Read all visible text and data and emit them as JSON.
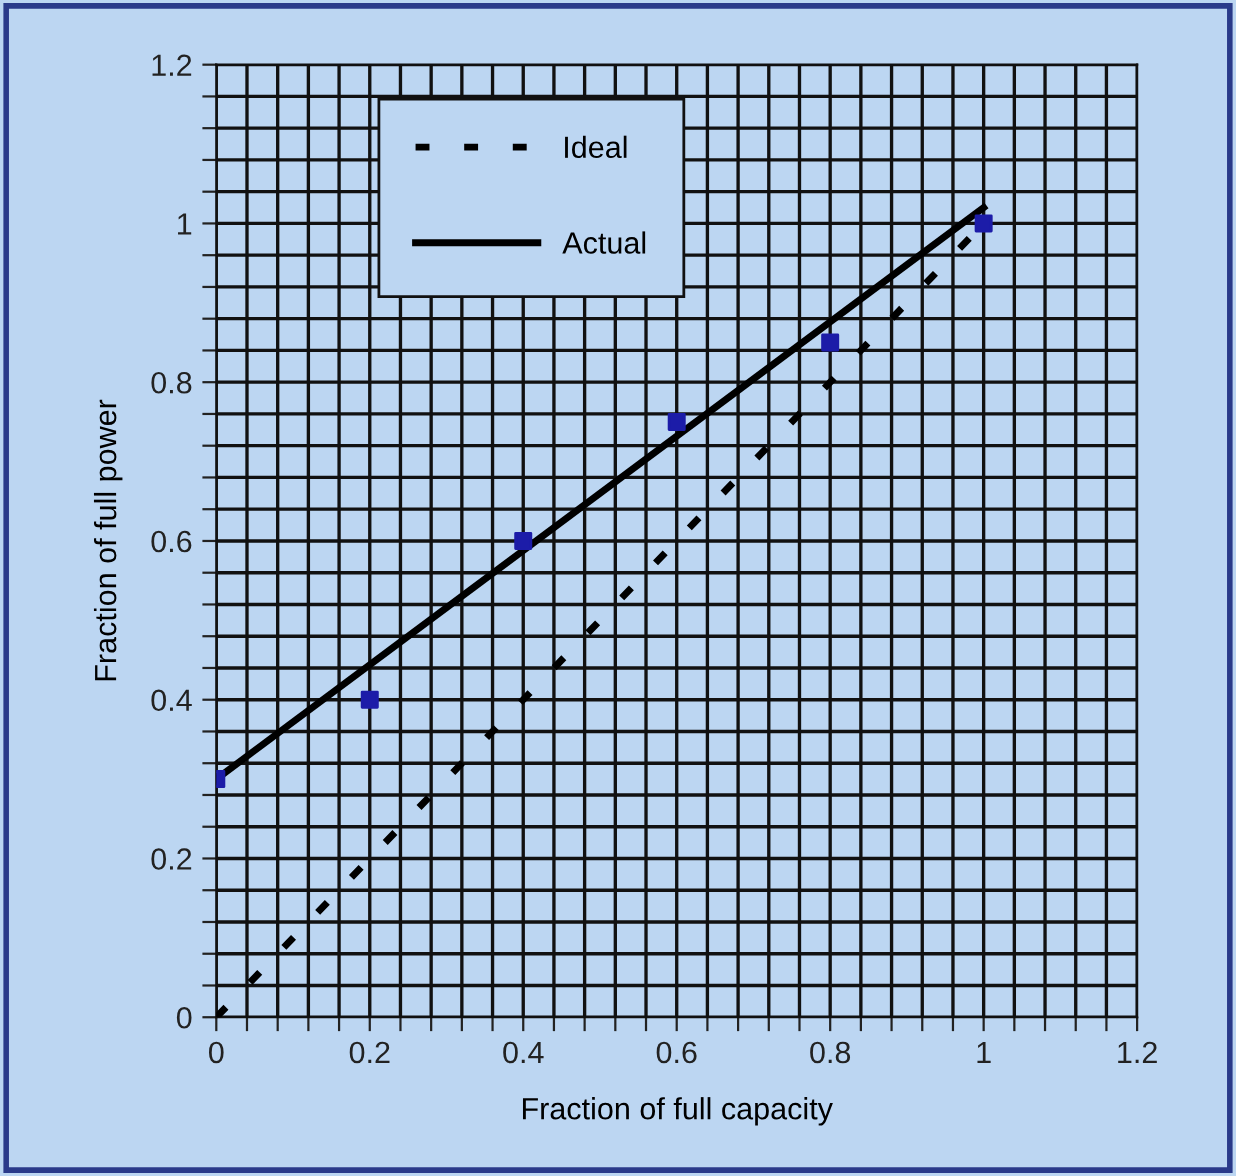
{
  "chart_data": {
    "type": "line",
    "xlabel": "Fraction of full capacity",
    "ylabel": "Fraction of full power",
    "series": [
      {
        "name": "Ideal",
        "color": "#000000",
        "line_style": "dashed",
        "x": [
          0,
          1
        ],
        "values": [
          0,
          1
        ]
      },
      {
        "name": "Actual",
        "color": "#000000",
        "line_style": "solid",
        "x": [
          0,
          1
        ],
        "values": [
          0.3,
          1.02
        ]
      },
      {
        "type": "scatter",
        "color": "#1c1ca8",
        "marker": "square",
        "x": [
          0,
          0.2,
          0.4,
          0.6,
          0.8,
          1
        ],
        "values": [
          0.3,
          0.4,
          0.6,
          0.75,
          0.85,
          1
        ]
      }
    ],
    "xlim": [
      0,
      1.2
    ],
    "ylim": [
      0,
      1.2
    ],
    "xticks": [
      0,
      {
        "value": 0.04,
        "label": null
      },
      {
        "value": 0.08,
        "label": null
      },
      {
        "value": 0.12,
        "label": null
      },
      {
        "value": 0.16,
        "label": null
      },
      0.2,
      {
        "value": 0.24,
        "label": null
      },
      {
        "value": 0.28,
        "label": null
      },
      {
        "value": 0.32,
        "label": null
      },
      {
        "value": 0.36,
        "label": null
      },
      0.4,
      {
        "value": 0.44,
        "label": null
      },
      {
        "value": 0.48,
        "label": null
      },
      {
        "value": 0.52,
        "label": null
      },
      {
        "value": 0.56,
        "label": null
      },
      0.6,
      {
        "value": 0.64,
        "label": null
      },
      {
        "value": 0.68,
        "label": null
      },
      {
        "value": 0.72,
        "label": null
      },
      {
        "value": 0.76,
        "label": null
      },
      0.8,
      {
        "value": 0.84,
        "label": null
      },
      {
        "value": 0.88,
        "label": null
      },
      {
        "value": 0.92,
        "label": null
      },
      {
        "value": 0.96,
        "label": null
      },
      1,
      {
        "value": 1.04,
        "label": null
      },
      {
        "value": 1.08,
        "label": null
      },
      {
        "value": 1.12,
        "label": null
      },
      {
        "value": 1.16,
        "label": null
      },
      1.2
    ],
    "yticks": [
      0,
      {
        "value": 0.04,
        "label": null
      },
      {
        "value": 0.08,
        "label": null
      },
      {
        "value": 0.12,
        "label": null
      },
      {
        "value": 0.16,
        "label": null
      },
      0.2,
      {
        "value": 0.24,
        "label": null
      },
      {
        "value": 0.28,
        "label": null
      },
      {
        "value": 0.32,
        "label": null
      },
      {
        "value": 0.36,
        "label": null
      },
      0.4,
      {
        "value": 0.44,
        "label": null
      },
      {
        "value": 0.48,
        "label": null
      },
      {
        "value": 0.52,
        "label": null
      },
      {
        "value": 0.56,
        "label": null
      },
      0.6,
      {
        "value": 0.64,
        "label": null
      },
      {
        "value": 0.68,
        "label": null
      },
      {
        "value": 0.72,
        "label": null
      },
      {
        "value": 0.76,
        "label": null
      },
      0.8,
      {
        "value": 0.84,
        "label": null
      },
      {
        "value": 0.88,
        "label": null
      },
      {
        "value": 0.92,
        "label": null
      },
      {
        "value": 0.96,
        "label": null
      },
      1,
      {
        "value": 1.04,
        "label": null
      },
      {
        "value": 1.08,
        "label": null
      },
      {
        "value": 1.12,
        "label": null
      },
      {
        "value": 1.16,
        "label": null
      },
      1.2
    ],
    "grid": true,
    "legend": "top left"
  }
}
